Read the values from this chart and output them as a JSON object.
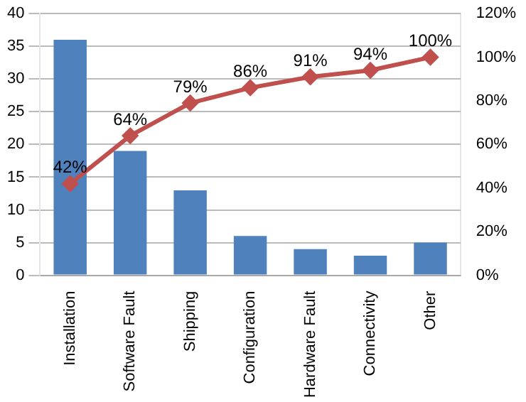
{
  "chart_data": {
    "type": "bar",
    "categories": [
      "Installation",
      "Software Fault",
      "Shipping",
      "Configuration",
      "Hardware Fault",
      "Connectivity",
      "Other"
    ],
    "series": [
      {
        "color": "#4f81bd",
        "values": [
          36,
          19,
          13,
          6,
          4,
          3,
          5
        ]
      },
      {
        "type": "line",
        "axis": "y2",
        "color": "#c0504d",
        "marker": "diamond",
        "values": [
          42,
          64,
          79,
          86,
          91,
          94,
          100
        ],
        "value_labels": [
          "42%",
          "64%",
          "79%",
          "86%",
          "91%",
          "94%",
          "100%"
        ]
      }
    ],
    "ylim": [
      0,
      40
    ],
    "yticks": [
      0,
      5,
      10,
      15,
      20,
      25,
      30,
      35,
      40
    ],
    "y2lim": [
      0,
      120
    ],
    "y2ticks": [
      {
        "value": 0,
        "label": "0%"
      },
      {
        "value": 20,
        "label": "20%"
      },
      {
        "value": 40,
        "label": "40%"
      },
      {
        "value": 60,
        "label": "60%"
      },
      {
        "value": 80,
        "label": "80%"
      },
      {
        "value": 100,
        "label": "100%"
      },
      {
        "value": 120,
        "label": "120%"
      }
    ],
    "grid": "y",
    "legend": false
  }
}
